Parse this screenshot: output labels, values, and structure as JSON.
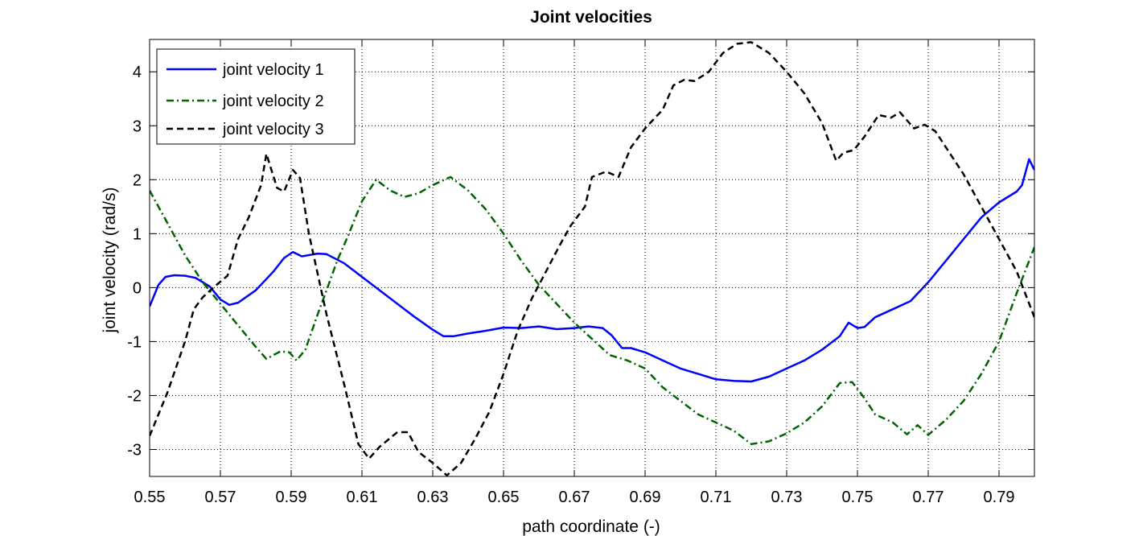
{
  "chart_data": {
    "type": "line",
    "title": "Joint velocities",
    "xlabel": "path coordinate (-)",
    "ylabel": "joint velocity (rad/s)",
    "xlim": [
      0.55,
      0.8
    ],
    "ylim": [
      -3.5,
      4.6
    ],
    "x_ticks": [
      0.55,
      0.57,
      0.59,
      0.61,
      0.63,
      0.65,
      0.67,
      0.69,
      0.71,
      0.73,
      0.75,
      0.77,
      0.79
    ],
    "x_tick_labels": [
      "0.55",
      "0.57",
      "0.59",
      "0.61",
      "0.63",
      "0.65",
      "0.67",
      "0.69",
      "0.71",
      "0.73",
      "0.75",
      "0.77",
      "0.79"
    ],
    "y_ticks": [
      -3,
      -2,
      -1,
      0,
      1,
      2,
      3,
      4
    ],
    "y_tick_labels": [
      "-3",
      "-2",
      "-1",
      "0",
      "1",
      "2",
      "3",
      "4"
    ],
    "grid": true,
    "legend_position": "top-left",
    "series": [
      {
        "name": "joint velocity 1",
        "color": "#0000ff",
        "dash": "solid",
        "points": [
          [
            0.55,
            -0.35
          ],
          [
            0.5525,
            0.05
          ],
          [
            0.5545,
            0.2
          ],
          [
            0.557,
            0.23
          ],
          [
            0.56,
            0.22
          ],
          [
            0.563,
            0.18
          ],
          [
            0.567,
            0.02
          ],
          [
            0.57,
            -0.22
          ],
          [
            0.5725,
            -0.32
          ],
          [
            0.575,
            -0.28
          ],
          [
            0.58,
            -0.05
          ],
          [
            0.585,
            0.3
          ],
          [
            0.588,
            0.55
          ],
          [
            0.5905,
            0.66
          ],
          [
            0.593,
            0.58
          ],
          [
            0.5975,
            0.63
          ],
          [
            0.6,
            0.62
          ],
          [
            0.605,
            0.45
          ],
          [
            0.61,
            0.2
          ],
          [
            0.615,
            -0.05
          ],
          [
            0.62,
            -0.3
          ],
          [
            0.625,
            -0.55
          ],
          [
            0.63,
            -0.78
          ],
          [
            0.633,
            -0.9
          ],
          [
            0.636,
            -0.9
          ],
          [
            0.64,
            -0.85
          ],
          [
            0.645,
            -0.8
          ],
          [
            0.65,
            -0.74
          ],
          [
            0.655,
            -0.75
          ],
          [
            0.66,
            -0.72
          ],
          [
            0.665,
            -0.77
          ],
          [
            0.67,
            -0.75
          ],
          [
            0.674,
            -0.72
          ],
          [
            0.678,
            -0.75
          ],
          [
            0.6805,
            -0.88
          ],
          [
            0.6835,
            -1.12
          ],
          [
            0.686,
            -1.12
          ],
          [
            0.69,
            -1.2
          ],
          [
            0.695,
            -1.35
          ],
          [
            0.7,
            -1.5
          ],
          [
            0.705,
            -1.6
          ],
          [
            0.71,
            -1.7
          ],
          [
            0.715,
            -1.73
          ],
          [
            0.72,
            -1.74
          ],
          [
            0.725,
            -1.65
          ],
          [
            0.73,
            -1.5
          ],
          [
            0.735,
            -1.35
          ],
          [
            0.74,
            -1.15
          ],
          [
            0.745,
            -0.9
          ],
          [
            0.7475,
            -0.65
          ],
          [
            0.75,
            -0.75
          ],
          [
            0.752,
            -0.73
          ],
          [
            0.755,
            -0.55
          ],
          [
            0.76,
            -0.4
          ],
          [
            0.765,
            -0.25
          ],
          [
            0.77,
            0.1
          ],
          [
            0.775,
            0.5
          ],
          [
            0.78,
            0.9
          ],
          [
            0.785,
            1.3
          ],
          [
            0.79,
            1.58
          ],
          [
            0.795,
            1.78
          ],
          [
            0.7965,
            1.9
          ],
          [
            0.7985,
            2.38
          ],
          [
            0.8,
            2.18
          ]
        ]
      },
      {
        "name": "joint velocity 2",
        "color": "#006400",
        "dash": "dashdot",
        "points": [
          [
            0.55,
            1.8
          ],
          [
            0.555,
            1.2
          ],
          [
            0.56,
            0.6
          ],
          [
            0.565,
            0.1
          ],
          [
            0.57,
            -0.3
          ],
          [
            0.575,
            -0.7
          ],
          [
            0.58,
            -1.1
          ],
          [
            0.583,
            -1.32
          ],
          [
            0.587,
            -1.18
          ],
          [
            0.5895,
            -1.2
          ],
          [
            0.5915,
            -1.35
          ],
          [
            0.594,
            -1.15
          ],
          [
            0.598,
            -0.4
          ],
          [
            0.6,
            -0.05
          ],
          [
            0.603,
            0.5
          ],
          [
            0.606,
            0.95
          ],
          [
            0.61,
            1.6
          ],
          [
            0.614,
            2.0
          ],
          [
            0.618,
            1.8
          ],
          [
            0.622,
            1.68
          ],
          [
            0.626,
            1.75
          ],
          [
            0.63,
            1.9
          ],
          [
            0.635,
            2.05
          ],
          [
            0.64,
            1.8
          ],
          [
            0.645,
            1.45
          ],
          [
            0.65,
            1.0
          ],
          [
            0.655,
            0.5
          ],
          [
            0.66,
            0.05
          ],
          [
            0.665,
            -0.3
          ],
          [
            0.67,
            -0.65
          ],
          [
            0.675,
            -0.95
          ],
          [
            0.68,
            -1.25
          ],
          [
            0.685,
            -1.35
          ],
          [
            0.69,
            -1.5
          ],
          [
            0.695,
            -1.85
          ],
          [
            0.7,
            -2.1
          ],
          [
            0.705,
            -2.35
          ],
          [
            0.71,
            -2.5
          ],
          [
            0.715,
            -2.65
          ],
          [
            0.72,
            -2.9
          ],
          [
            0.725,
            -2.85
          ],
          [
            0.73,
            -2.7
          ],
          [
            0.735,
            -2.5
          ],
          [
            0.74,
            -2.2
          ],
          [
            0.745,
            -1.77
          ],
          [
            0.7485,
            -1.75
          ],
          [
            0.752,
            -2.05
          ],
          [
            0.755,
            -2.35
          ],
          [
            0.76,
            -2.5
          ],
          [
            0.764,
            -2.72
          ],
          [
            0.767,
            -2.55
          ],
          [
            0.77,
            -2.73
          ],
          [
            0.775,
            -2.45
          ],
          [
            0.78,
            -2.1
          ],
          [
            0.785,
            -1.6
          ],
          [
            0.79,
            -1.0
          ],
          [
            0.795,
            -0.1
          ],
          [
            0.8,
            0.75
          ]
        ]
      },
      {
        "name": "joint velocity 3",
        "color": "#000000",
        "dash": "dashed",
        "points": [
          [
            0.55,
            -2.75
          ],
          [
            0.555,
            -1.95
          ],
          [
            0.56,
            -1.0
          ],
          [
            0.5625,
            -0.4
          ],
          [
            0.565,
            -0.18
          ],
          [
            0.568,
            0.0
          ],
          [
            0.572,
            0.22
          ],
          [
            0.575,
            0.9
          ],
          [
            0.578,
            1.3
          ],
          [
            0.5815,
            1.9
          ],
          [
            0.583,
            2.48
          ],
          [
            0.586,
            1.85
          ],
          [
            0.588,
            1.78
          ],
          [
            0.5905,
            2.18
          ],
          [
            0.5925,
            2.03
          ],
          [
            0.595,
            1.0
          ],
          [
            0.6,
            -0.5
          ],
          [
            0.605,
            -1.8
          ],
          [
            0.609,
            -2.9
          ],
          [
            0.612,
            -3.17
          ],
          [
            0.615,
            -2.95
          ],
          [
            0.62,
            -2.68
          ],
          [
            0.623,
            -2.68
          ],
          [
            0.626,
            -3.05
          ],
          [
            0.63,
            -3.25
          ],
          [
            0.634,
            -3.48
          ],
          [
            0.638,
            -3.25
          ],
          [
            0.642,
            -2.8
          ],
          [
            0.646,
            -2.3
          ],
          [
            0.65,
            -1.6
          ],
          [
            0.654,
            -0.8
          ],
          [
            0.658,
            -0.2
          ],
          [
            0.662,
            0.3
          ],
          [
            0.666,
            0.8
          ],
          [
            0.669,
            1.15
          ],
          [
            0.673,
            1.5
          ],
          [
            0.675,
            2.05
          ],
          [
            0.679,
            2.15
          ],
          [
            0.6825,
            2.05
          ],
          [
            0.686,
            2.6
          ],
          [
            0.69,
            2.95
          ],
          [
            0.695,
            3.3
          ],
          [
            0.698,
            3.75
          ],
          [
            0.701,
            3.85
          ],
          [
            0.704,
            3.83
          ],
          [
            0.708,
            4.0
          ],
          [
            0.712,
            4.35
          ],
          [
            0.716,
            4.52
          ],
          [
            0.72,
            4.55
          ],
          [
            0.725,
            4.35
          ],
          [
            0.73,
            4.0
          ],
          [
            0.735,
            3.6
          ],
          [
            0.74,
            3.05
          ],
          [
            0.744,
            2.35
          ],
          [
            0.746,
            2.5
          ],
          [
            0.749,
            2.55
          ],
          [
            0.752,
            2.8
          ],
          [
            0.756,
            3.2
          ],
          [
            0.7595,
            3.15
          ],
          [
            0.762,
            3.25
          ],
          [
            0.766,
            2.95
          ],
          [
            0.769,
            3.02
          ],
          [
            0.772,
            2.9
          ],
          [
            0.776,
            2.5
          ],
          [
            0.78,
            2.1
          ],
          [
            0.785,
            1.5
          ],
          [
            0.79,
            0.9
          ],
          [
            0.795,
            0.3
          ],
          [
            0.8,
            -0.55
          ]
        ]
      }
    ]
  }
}
